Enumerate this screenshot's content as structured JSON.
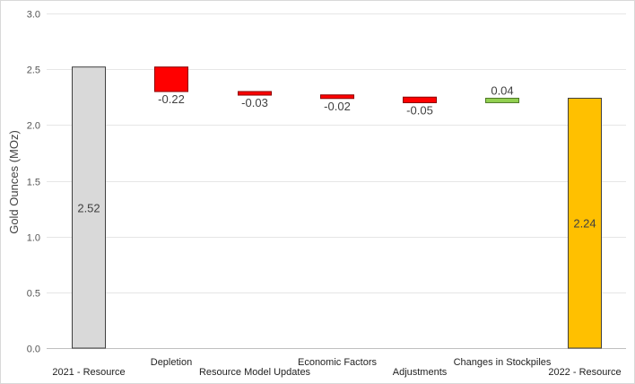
{
  "chart_data": {
    "type": "bar",
    "subtype": "waterfall",
    "title": "",
    "xlabel": "",
    "ylabel": "Gold Ounces (MOz)",
    "ylim": [
      0,
      3.0
    ],
    "yticks": [
      "0.0",
      "0.5",
      "1.0",
      "1.5",
      "2.0",
      "2.5",
      "3.0"
    ],
    "grid": true,
    "legend": "none",
    "categories": [
      "2021 - Resource",
      "Depletion",
      "Resource Model Updates",
      "Economic Factors",
      "Adjustments",
      "Changes in Stockpiles",
      "2022 - Resource"
    ],
    "bars": [
      {
        "category": "2021 - Resource",
        "kind": "total",
        "start": 0,
        "end": 2.52,
        "label": "2.52",
        "color": "#d9d9d9"
      },
      {
        "category": "Depletion",
        "kind": "decrease",
        "start": 2.52,
        "end": 2.3,
        "label": "-0.22",
        "color": "#ff0000"
      },
      {
        "category": "Resource Model Updates",
        "kind": "decrease",
        "start": 2.3,
        "end": 2.27,
        "label": "-0.03",
        "color": "#ff0000"
      },
      {
        "category": "Economic Factors",
        "kind": "decrease",
        "start": 2.27,
        "end": 2.25,
        "label": "-0.02",
        "color": "#ff0000"
      },
      {
        "category": "Adjustments",
        "kind": "decrease",
        "start": 2.25,
        "end": 2.2,
        "label": "-0.05",
        "color": "#ff0000"
      },
      {
        "category": "Changes in Stockpiles",
        "kind": "increase",
        "start": 2.2,
        "end": 2.24,
        "label": "0.04",
        "color": "#92d050"
      },
      {
        "category": "2022 - Resource",
        "kind": "total",
        "start": 0,
        "end": 2.24,
        "label": "2.24",
        "color": "#ffc000"
      }
    ]
  }
}
